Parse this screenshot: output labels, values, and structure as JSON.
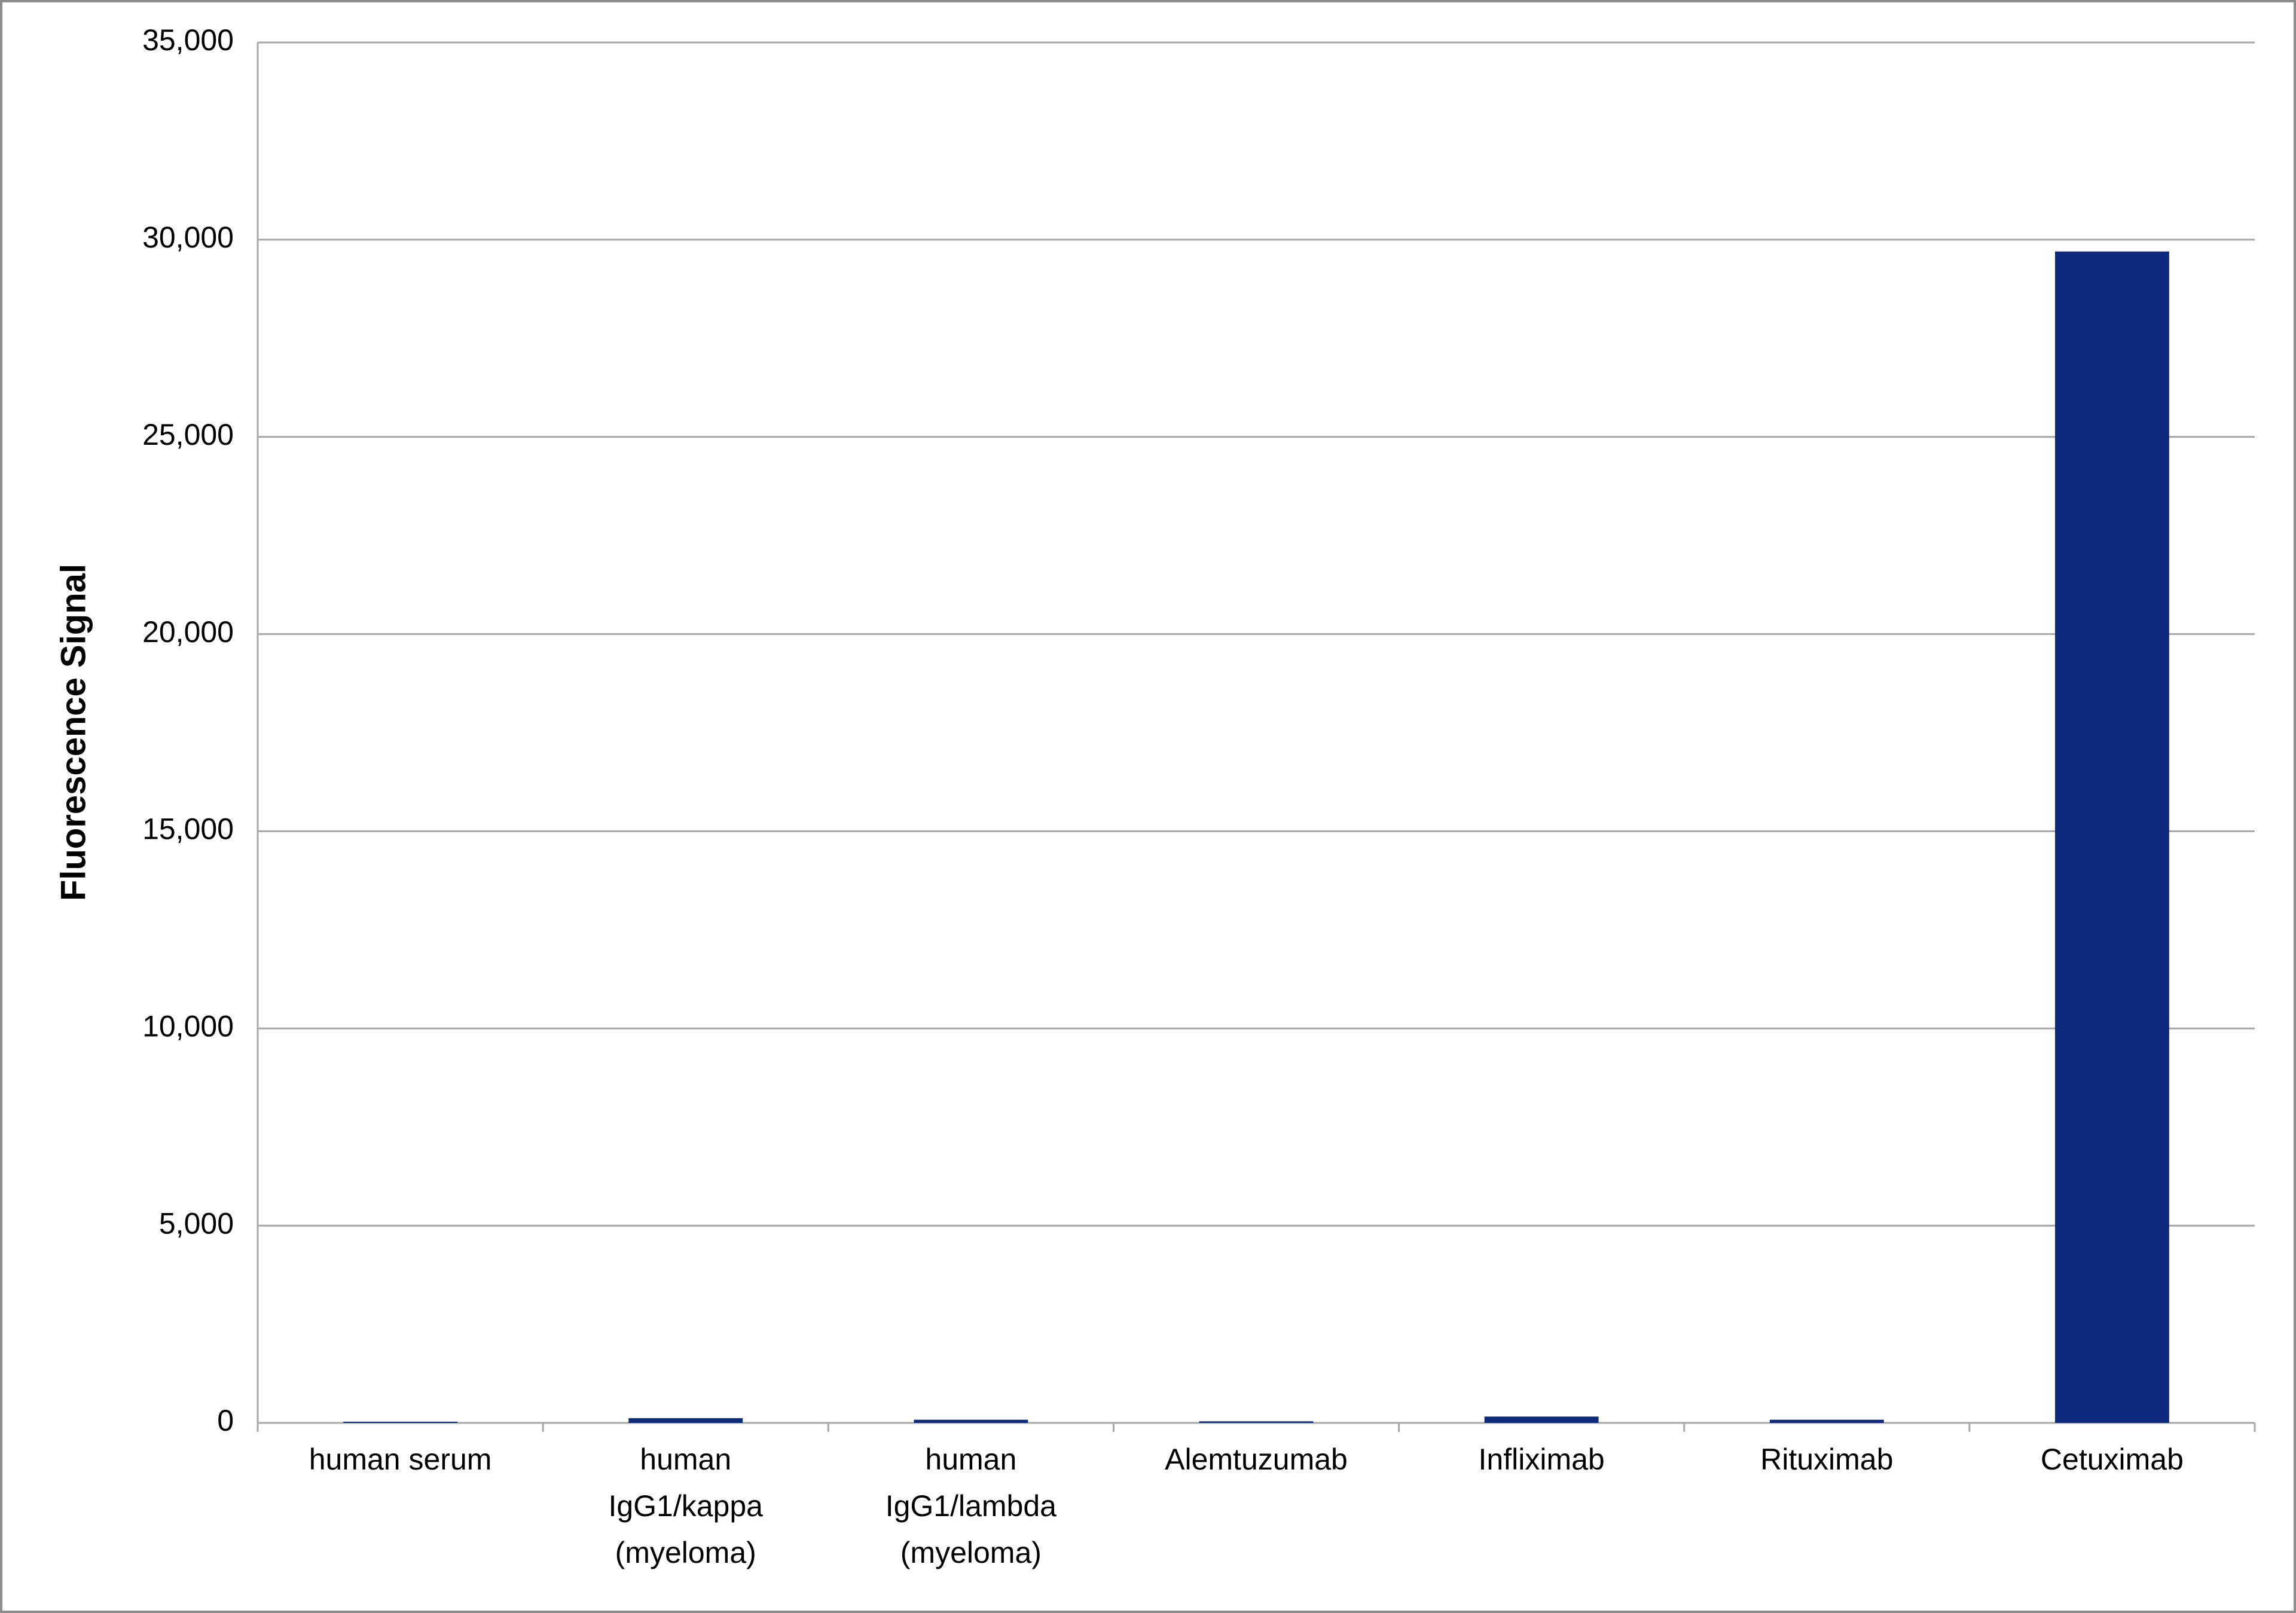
{
  "chart_data": {
    "type": "bar",
    "y_label": "Fluorescence Signal",
    "categories": [
      "human serum",
      "human\nIgG1/kappa\n(myeloma)",
      "human\nIgG1/lambda\n(myeloma)",
      "Alemtuzumab",
      "Infliximab",
      "Rituximab",
      "Cetuximab"
    ],
    "values": [
      30,
      120,
      80,
      40,
      160,
      80,
      29700
    ],
    "color": "#0d2a7e",
    "ylim": [
      0,
      35000
    ],
    "yticks": [
      0,
      {
        "value": 5000,
        "label": "5,000"
      },
      {
        "value": 10000,
        "label": "10,000"
      },
      {
        "value": 15000,
        "label": "15,000"
      },
      {
        "value": 20000,
        "label": "20,000"
      },
      {
        "value": 25000,
        "label": "25,000"
      },
      {
        "value": 30000,
        "label": "30,000"
      },
      {
        "value": 35000,
        "label": "35,000"
      }
    ],
    "grid": true
  }
}
